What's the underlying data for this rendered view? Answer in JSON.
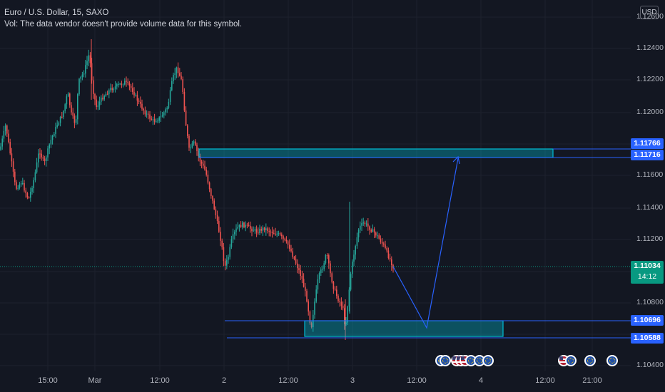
{
  "legend": {
    "symbol": "Euro / U.S. Dollar, 15, SAXO",
    "volume_note": "Vol: The data vendor doesn't provide volume data for this symbol."
  },
  "currency_button": "USD",
  "price_axis": {
    "ticks": [
      "1.12600",
      "1.12400",
      "1.12200",
      "1.12000",
      "1.11600",
      "1.11400",
      "1.11200",
      "1.10800",
      "1.10400"
    ]
  },
  "time_axis": {
    "ticks": [
      "15:00",
      "Mar",
      "12:00",
      "2",
      "12:00",
      "3",
      "12:00",
      "4",
      "12:00",
      "21:00"
    ]
  },
  "price_badges": {
    "upper_top": "1.11766",
    "upper_bottom": "1.11716",
    "lower_top": "1.10696",
    "lower_bottom": "1.10588"
  },
  "current_price": {
    "value": "1.11034",
    "countdown": "14:12"
  },
  "colors": {
    "background": "#131722",
    "bull": "#26a69a",
    "bear": "#ef5350",
    "zone_fill": "#00bcd4",
    "line_blue": "#2962ff",
    "badge_blue": "#2962ff",
    "current_price": "#089981"
  },
  "event_icons": [
    "eu-flag-icon",
    "eu-flag-icon",
    "us-flag-icon",
    "us-flag-icon",
    "us-flag-icon",
    "eu-flag-icon",
    "eu-flag-icon",
    "eu-flag-icon",
    "us-flag-icon",
    "eu-flag-icon"
  ]
}
